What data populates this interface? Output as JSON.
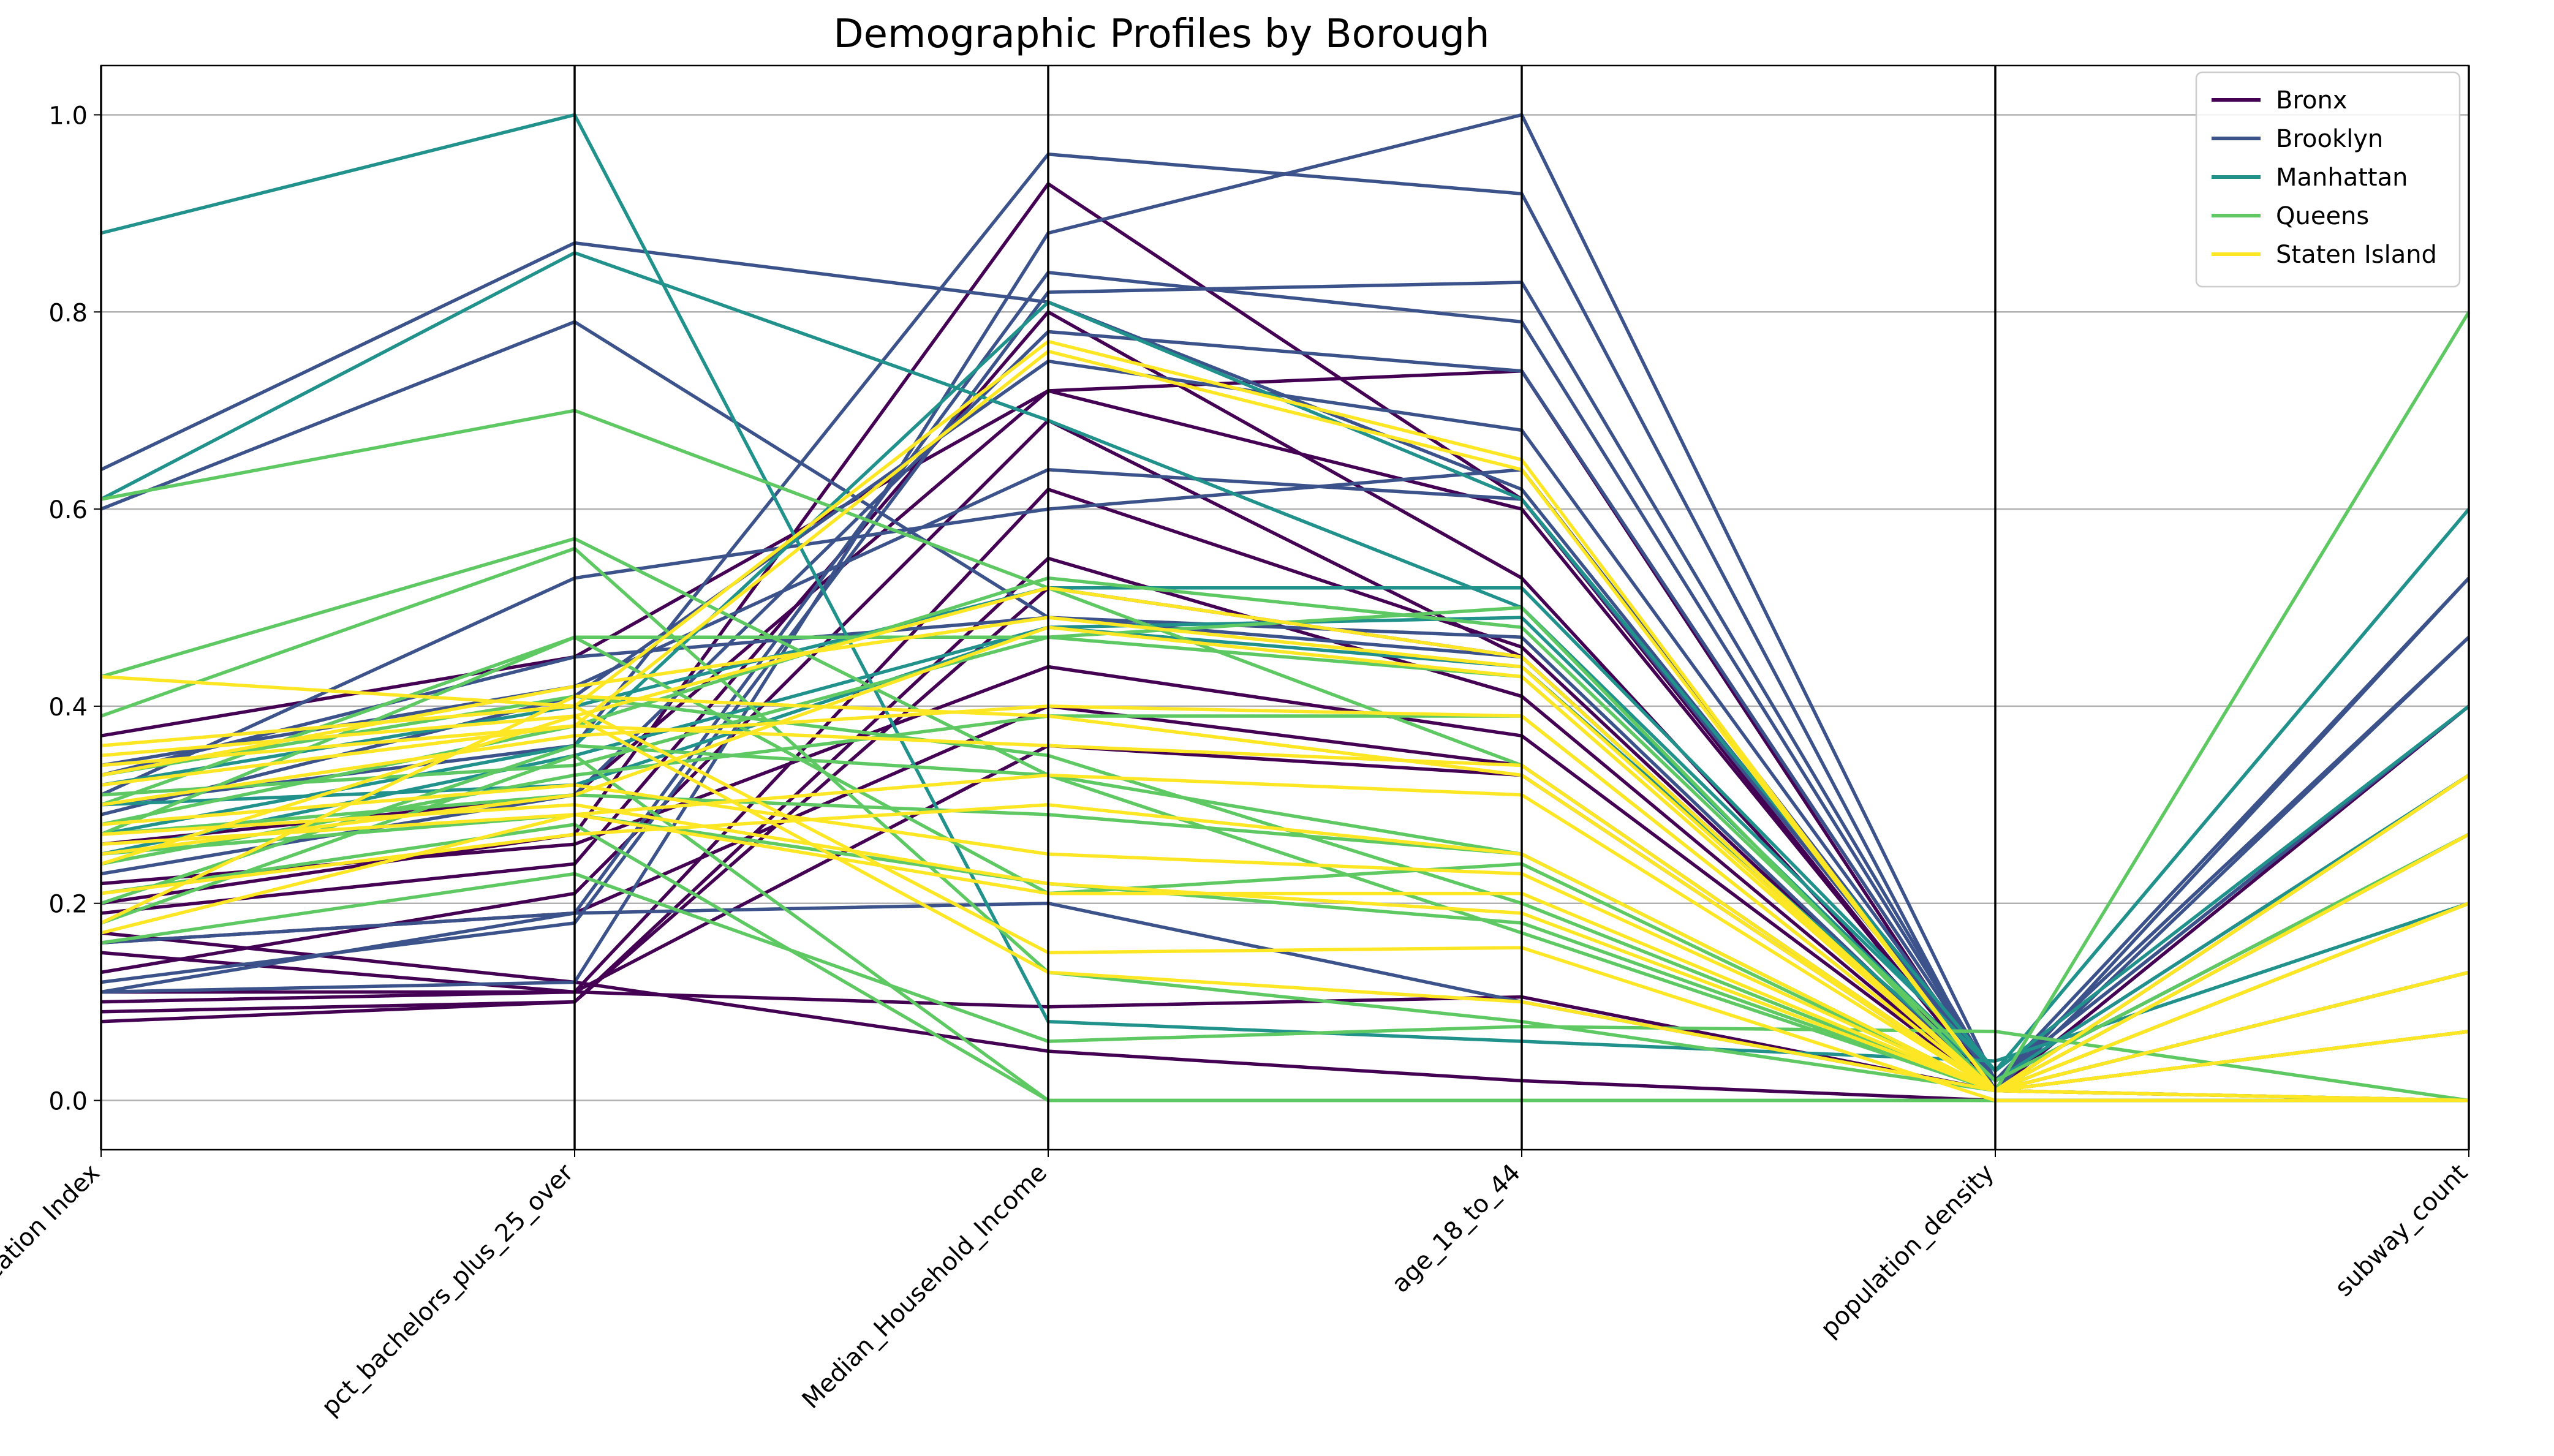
{
  "chart_data": {
    "type": "line",
    "subtype": "parallel-coordinates",
    "title": "Demographic Profiles by Borough",
    "xlabel": "",
    "ylabel": "",
    "axes": [
      "Education Index",
      "pct_bachelors_plus_25_over",
      "Median_Household_Income",
      "age_18_to_44",
      "population_density",
      "subway_count"
    ],
    "ylim": [
      -0.05,
      1.05
    ],
    "yticks": [
      "0.0",
      "0.2",
      "0.4",
      "0.6",
      "0.8",
      "1.0"
    ],
    "ytick_values": [
      0,
      0.2,
      0.4,
      0.6,
      0.8,
      1.0
    ],
    "grid": true,
    "legend_position": "top-right",
    "colors": {
      "Bronx": "#440154",
      "Brooklyn": "#3b528b",
      "Manhattan": "#21918c",
      "Queens": "#5ec962",
      "Staten Island": "#fde725"
    },
    "series": [
      {
        "name": "Bronx",
        "lines": [
          [
            0.37,
            0.45,
            0.72,
            0.74,
            0.01,
            0.13
          ],
          [
            0.2,
            0.27,
            0.93,
            0.61,
            0.01,
            0.13
          ],
          [
            0.19,
            0.24,
            0.8,
            0.53,
            0.01,
            0.07
          ],
          [
            0.17,
            0.12,
            0.05,
            0.02,
            0.0,
            0.0
          ],
          [
            0.13,
            0.21,
            0.69,
            0.45,
            0.01,
            0.4
          ],
          [
            0.11,
            0.11,
            0.62,
            0.46,
            0.01,
            0.33
          ],
          [
            0.09,
            0.1,
            0.55,
            0.41,
            0.01,
            0.33
          ],
          [
            0.08,
            0.1,
            0.52,
            0.45,
            0.01,
            0.07
          ],
          [
            0.22,
            0.26,
            0.44,
            0.37,
            0.01,
            0.07
          ],
          [
            0.16,
            0.19,
            0.4,
            0.34,
            0.01,
            0.0
          ],
          [
            0.15,
            0.11,
            0.36,
            0.33,
            0.01,
            0.13
          ],
          [
            0.1,
            0.11,
            0.095,
            0.105,
            0.01,
            0.0
          ],
          [
            0.26,
            0.31,
            0.72,
            0.6,
            0.01,
            0.27
          ]
        ]
      },
      {
        "name": "Brooklyn",
        "lines": [
          [
            0.64,
            0.87,
            0.81,
            0.62,
            0.02,
            0.47
          ],
          [
            0.6,
            0.79,
            0.49,
            0.45,
            0.01,
            0.53
          ],
          [
            0.31,
            0.53,
            0.6,
            0.64,
            0.02,
            0.4
          ],
          [
            0.3,
            0.36,
            0.96,
            0.92,
            0.01,
            0.47
          ],
          [
            0.16,
            0.19,
            0.2,
            0.1,
            0.01,
            0.2
          ],
          [
            0.11,
            0.12,
            0.88,
            1.0,
            0.02,
            0.4
          ],
          [
            0.11,
            0.19,
            0.84,
            0.79,
            0.02,
            0.27
          ],
          [
            0.12,
            0.18,
            0.82,
            0.83,
            0.02,
            0.33
          ],
          [
            0.34,
            0.42,
            0.64,
            0.61,
            0.02,
            0.47
          ],
          [
            0.29,
            0.41,
            0.75,
            0.68,
            0.02,
            0.53
          ],
          [
            0.23,
            0.31,
            0.78,
            0.74,
            0.02,
            0.4
          ],
          [
            0.33,
            0.45,
            0.49,
            0.47,
            0.01,
            0.27
          ]
        ]
      },
      {
        "name": "Manhattan",
        "lines": [
          [
            0.88,
            1.0,
            0.08,
            0.06,
            0.04,
            0.2
          ],
          [
            0.61,
            0.86,
            0.69,
            0.5,
            0.03,
            0.6
          ],
          [
            0.32,
            0.4,
            0.52,
            0.52,
            0.03,
            0.6
          ],
          [
            0.3,
            0.32,
            0.48,
            0.49,
            0.02,
            0.33
          ],
          [
            0.27,
            0.36,
            0.81,
            0.61,
            0.03,
            0.4
          ],
          [
            0.25,
            0.35,
            0.48,
            0.44,
            0.02,
            0.27
          ]
        ]
      },
      {
        "name": "Queens",
        "lines": [
          [
            0.61,
            0.7,
            0.52,
            0.34,
            0.01,
            0.8
          ],
          [
            0.43,
            0.57,
            0.33,
            0.25,
            0.01,
            0.2
          ],
          [
            0.39,
            0.56,
            0.13,
            0.08,
            0.01,
            0.0
          ],
          [
            0.3,
            0.47,
            0.47,
            0.5,
            0.01,
            0.2
          ],
          [
            0.27,
            0.47,
            0.21,
            0.24,
            0.01,
            0.13
          ],
          [
            0.21,
            0.28,
            0.0,
            0.0,
            0.0,
            0.0
          ],
          [
            0.18,
            0.35,
            0.0,
            0.0,
            0.0,
            0.0
          ],
          [
            0.16,
            0.23,
            0.06,
            0.075,
            0.07,
            0.0
          ],
          [
            0.27,
            0.31,
            0.29,
            0.25,
            0.01,
            0.27
          ],
          [
            0.33,
            0.41,
            0.35,
            0.2,
            0.01,
            0.13
          ],
          [
            0.24,
            0.33,
            0.39,
            0.39,
            0.01,
            0.2
          ],
          [
            0.2,
            0.36,
            0.33,
            0.17,
            0.01,
            0.07
          ],
          [
            0.28,
            0.38,
            0.53,
            0.48,
            0.02,
            0.27
          ],
          [
            0.31,
            0.34,
            0.47,
            0.43,
            0.01,
            0.13
          ],
          [
            0.25,
            0.29,
            0.22,
            0.18,
            0.01,
            0.07
          ]
        ]
      },
      {
        "name": "Staten Island",
        "lines": [
          [
            0.43,
            0.4,
            0.15,
            0.155,
            0.0,
            0.0
          ],
          [
            0.36,
            0.4,
            0.77,
            0.65,
            0.01,
            0.33
          ],
          [
            0.34,
            0.38,
            0.76,
            0.64,
            0.01,
            0.27
          ],
          [
            0.33,
            0.42,
            0.49,
            0.44,
            0.01,
            0.2
          ],
          [
            0.3,
            0.37,
            0.4,
            0.39,
            0.01,
            0.13
          ],
          [
            0.28,
            0.32,
            0.25,
            0.23,
            0.01,
            0.07
          ],
          [
            0.27,
            0.3,
            0.22,
            0.19,
            0.01,
            0.0
          ],
          [
            0.26,
            0.29,
            0.33,
            0.31,
            0.01,
            0.13
          ],
          [
            0.25,
            0.31,
            0.48,
            0.43,
            0.01,
            0.2
          ],
          [
            0.21,
            0.27,
            0.3,
            0.25,
            0.01,
            0.07
          ],
          [
            0.18,
            0.41,
            0.39,
            0.33,
            0.01,
            0.27
          ],
          [
            0.17,
            0.29,
            0.21,
            0.21,
            0.01,
            0.0
          ],
          [
            0.35,
            0.39,
            0.52,
            0.45,
            0.01,
            0.33
          ],
          [
            0.24,
            0.39,
            0.13,
            0.1,
            0.01,
            0.07
          ],
          [
            0.32,
            0.38,
            0.36,
            0.34,
            0.01,
            0.2
          ]
        ]
      }
    ]
  }
}
